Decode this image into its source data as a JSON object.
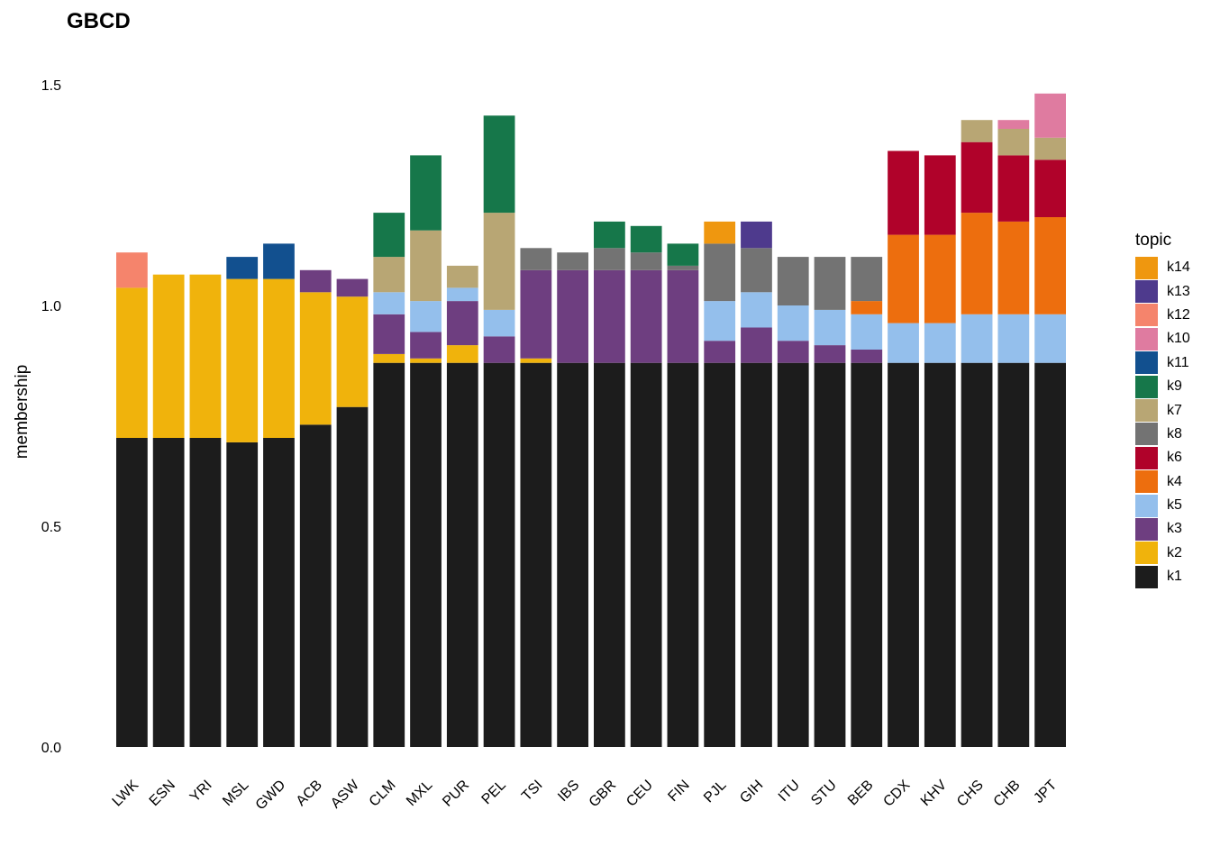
{
  "chart_data": {
    "type": "bar",
    "title": "GBCD",
    "xlabel": "",
    "ylabel": "membership",
    "ylim": [
      0,
      1.52
    ],
    "yticks": [
      "0.0",
      "0.5",
      "1.0",
      "1.5"
    ],
    "grid": false,
    "legend": {
      "title": "topic",
      "position": "right"
    },
    "categories": [
      "LWK",
      "ESN",
      "YRI",
      "MSL",
      "GWD",
      "ACB",
      "ASW",
      "CLM",
      "MXL",
      "PUR",
      "PEL",
      "TSI",
      "IBS",
      "GBR",
      "CEU",
      "FIN",
      "PJL",
      "GIH",
      "ITU",
      "STU",
      "BEB",
      "CDX",
      "KHV",
      "CHS",
      "CHB",
      "JPT"
    ],
    "series": [
      {
        "name": "k1",
        "color": "#1c1c1c",
        "values": [
          0.7,
          0.7,
          0.7,
          0.69,
          0.7,
          0.73,
          0.77,
          0.87,
          0.87,
          0.87,
          0.87,
          0.87,
          0.87,
          0.87,
          0.87,
          0.87,
          0.87,
          0.87,
          0.87,
          0.87,
          0.87,
          0.87,
          0.87,
          0.87,
          0.87,
          0.87
        ]
      },
      {
        "name": "k2",
        "color": "#f0b30c",
        "values": [
          0.34,
          0.37,
          0.37,
          0.37,
          0.36,
          0.3,
          0.25,
          0.02,
          0.01,
          0.04,
          0,
          0.01,
          0,
          0,
          0,
          0,
          0,
          0,
          0,
          0,
          0,
          0,
          0,
          0,
          0,
          0
        ]
      },
      {
        "name": "k3",
        "color": "#6e3e80",
        "values": [
          0,
          0,
          0,
          0,
          0,
          0.05,
          0.04,
          0.09,
          0.06,
          0.1,
          0.06,
          0.2,
          0.21,
          0.21,
          0.21,
          0.21,
          0.05,
          0.08,
          0.05,
          0.04,
          0.03,
          0,
          0,
          0,
          0,
          0
        ]
      },
      {
        "name": "k5",
        "color": "#94bfec",
        "values": [
          0,
          0,
          0,
          0,
          0,
          0,
          0,
          0.05,
          0.07,
          0.03,
          0.06,
          0,
          0,
          0,
          0,
          0,
          0.09,
          0.08,
          0.08,
          0.08,
          0.08,
          0.09,
          0.09,
          0.11,
          0.11,
          0.11
        ]
      },
      {
        "name": "k4",
        "color": "#ed6e0e",
        "values": [
          0,
          0,
          0,
          0,
          0,
          0,
          0,
          0,
          0,
          0,
          0,
          0,
          0,
          0,
          0,
          0,
          0,
          0,
          0,
          0,
          0.03,
          0.2,
          0.2,
          0.23,
          0.21,
          0.22
        ]
      },
      {
        "name": "k6",
        "color": "#b0022a",
        "values": [
          0,
          0,
          0,
          0,
          0,
          0,
          0,
          0,
          0,
          0,
          0,
          0,
          0,
          0,
          0,
          0,
          0,
          0,
          0,
          0,
          0,
          0.19,
          0.18,
          0.16,
          0.15,
          0.13
        ]
      },
      {
        "name": "k8",
        "color": "#737373",
        "values": [
          0,
          0,
          0,
          0,
          0,
          0,
          0,
          0,
          0,
          0,
          0,
          0.05,
          0.04,
          0.05,
          0.04,
          0.01,
          0.13,
          0.1,
          0.11,
          0.12,
          0.1,
          0,
          0,
          0,
          0,
          0
        ]
      },
      {
        "name": "k7",
        "color": "#b8a674",
        "values": [
          0,
          0,
          0,
          0,
          0,
          0,
          0,
          0.08,
          0.16,
          0.05,
          0.22,
          0,
          0,
          0,
          0,
          0,
          0,
          0,
          0,
          0,
          0,
          0,
          0,
          0.05,
          0.06,
          0.05
        ]
      },
      {
        "name": "k9",
        "color": "#16774a",
        "values": [
          0,
          0,
          0,
          0,
          0,
          0,
          0,
          0.1,
          0.17,
          0,
          0.22,
          0,
          0,
          0.06,
          0.06,
          0.05,
          0,
          0,
          0,
          0,
          0,
          0,
          0,
          0,
          0,
          0
        ]
      },
      {
        "name": "k11",
        "color": "#12508f",
        "values": [
          0,
          0,
          0,
          0.05,
          0.08,
          0,
          0,
          0,
          0,
          0,
          0,
          0,
          0,
          0,
          0,
          0,
          0,
          0,
          0,
          0,
          0,
          0,
          0,
          0,
          0,
          0
        ]
      },
      {
        "name": "k10",
        "color": "#df7ba0",
        "values": [
          0,
          0,
          0,
          0,
          0,
          0,
          0,
          0,
          0,
          0,
          0,
          0,
          0,
          0,
          0,
          0,
          0,
          0,
          0,
          0,
          0,
          0,
          0,
          0,
          0.02,
          0.1
        ]
      },
      {
        "name": "k12",
        "color": "#f5846c",
        "values": [
          0.08,
          0,
          0,
          0,
          0,
          0,
          0,
          0,
          0,
          0,
          0,
          0,
          0,
          0,
          0,
          0,
          0,
          0,
          0,
          0,
          0,
          0,
          0,
          0,
          0,
          0
        ]
      },
      {
        "name": "k13",
        "color": "#4e3a8d",
        "values": [
          0,
          0,
          0,
          0,
          0,
          0,
          0,
          0,
          0,
          0,
          0,
          0,
          0,
          0,
          0,
          0,
          0,
          0.06,
          0,
          0,
          0,
          0,
          0,
          0,
          0,
          0
        ]
      },
      {
        "name": "k14",
        "color": "#ef970f",
        "values": [
          0,
          0,
          0,
          0,
          0,
          0,
          0,
          0,
          0,
          0,
          0,
          0,
          0,
          0,
          0,
          0,
          0.05,
          0,
          0,
          0,
          0,
          0,
          0,
          0,
          0,
          0
        ]
      }
    ],
    "legend_order": [
      "k14",
      "k13",
      "k12",
      "k10",
      "k11",
      "k9",
      "k7",
      "k8",
      "k6",
      "k4",
      "k5",
      "k3",
      "k2",
      "k1"
    ]
  }
}
